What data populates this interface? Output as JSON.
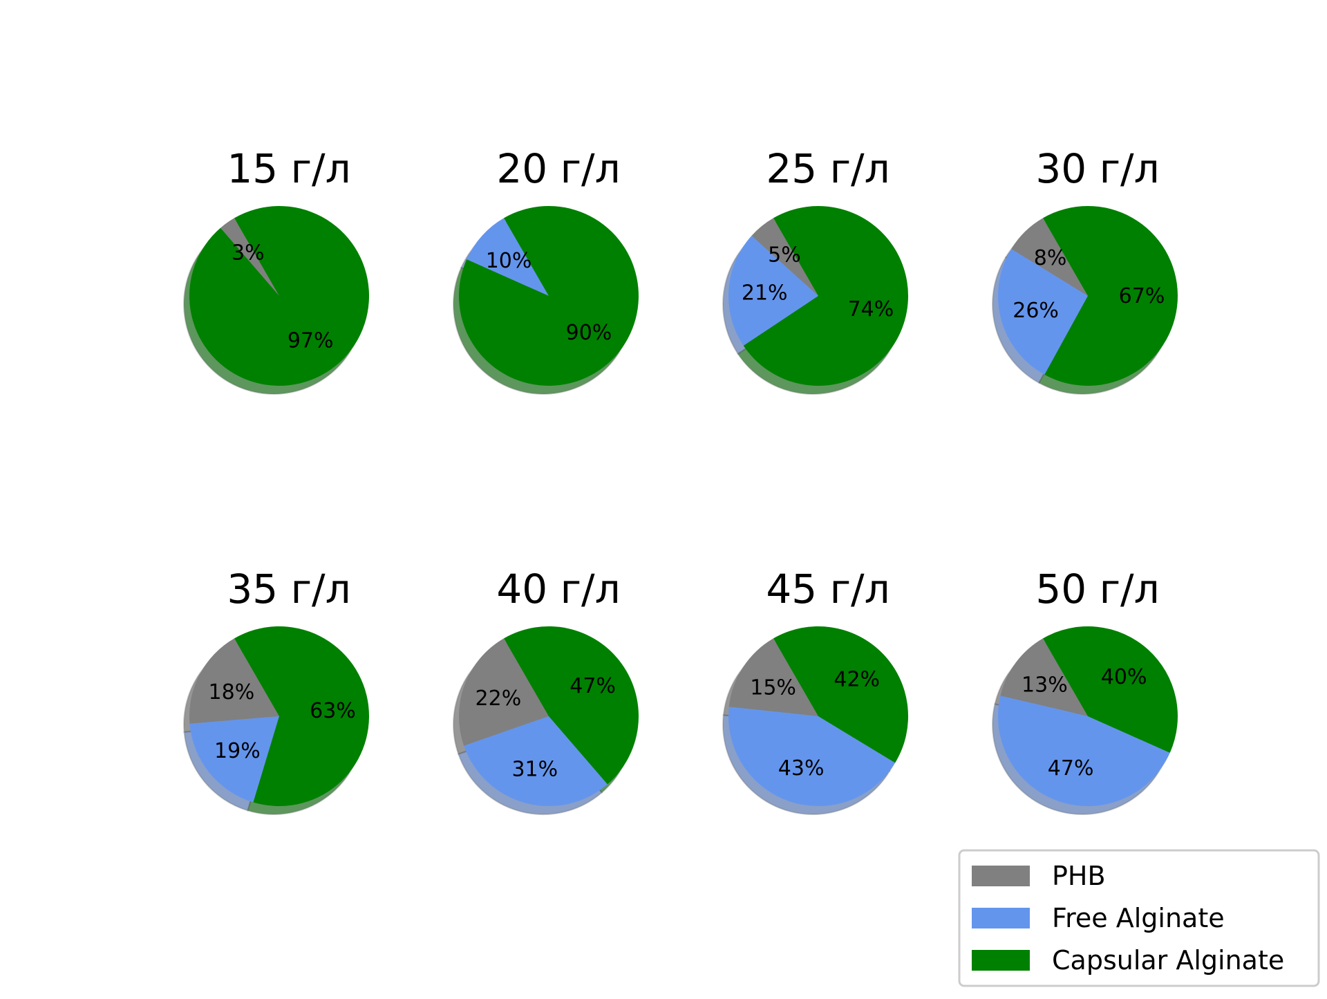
{
  "chart_data": {
    "type": "pie",
    "colors": {
      "PHB": "#808080",
      "Free Alginate": "#6495ed",
      "Capsular Alginate": "#008000"
    },
    "legend": {
      "placement": "bottom-right",
      "entries": [
        "PHB",
        "Free Alginate",
        "Capsular Alginate"
      ]
    },
    "charts": [
      {
        "title": "15 г/л",
        "values": [
          3,
          0,
          97
        ],
        "labels": [
          "3%",
          "",
          "97%"
        ]
      },
      {
        "title": "20 г/л",
        "values": [
          0,
          10,
          90
        ],
        "labels": [
          "",
          "10%",
          "90%"
        ]
      },
      {
        "title": "25 г/л",
        "values": [
          5,
          21,
          74
        ],
        "labels": [
          "5%",
          "21%",
          "74%"
        ]
      },
      {
        "title": "30 г/л",
        "values": [
          8,
          26,
          67
        ],
        "labels": [
          "8%",
          "26%",
          "67%"
        ]
      },
      {
        "title": "35 г/л",
        "values": [
          18,
          19,
          63
        ],
        "labels": [
          "18%",
          "19%",
          "63%"
        ]
      },
      {
        "title": "40 г/л",
        "values": [
          22,
          31,
          47
        ],
        "labels": [
          "22%",
          "31%",
          "47%"
        ]
      },
      {
        "title": "45 г/л",
        "values": [
          15,
          43,
          42
        ],
        "labels": [
          "15%",
          "43%",
          "42%"
        ]
      },
      {
        "title": "50 г/л",
        "values": [
          13,
          47,
          40
        ],
        "labels": [
          "13%",
          "47%",
          "40%"
        ]
      }
    ],
    "start_angle_deg": 120
  }
}
